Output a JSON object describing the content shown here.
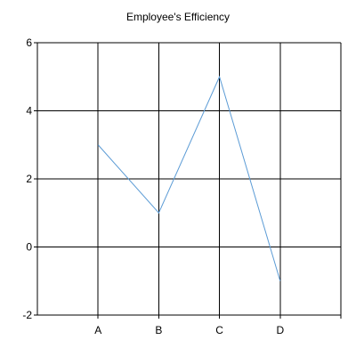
{
  "chart_data": {
    "type": "line",
    "title": "Employee's Efficiency",
    "categories": [
      "A",
      "B",
      "C",
      "D"
    ],
    "series": [
      {
        "values": [
          3,
          1,
          5,
          -1
        ],
        "color": "#5b9bd5"
      }
    ],
    "ylim": [
      -2,
      6
    ],
    "yticks": [
      -2,
      0,
      2,
      4,
      6
    ],
    "xlabel": "",
    "ylabel": "",
    "grid": true,
    "legend": "none",
    "colors": {
      "grid": "#000000",
      "axis": "#000000",
      "background": "#ffffff"
    }
  }
}
